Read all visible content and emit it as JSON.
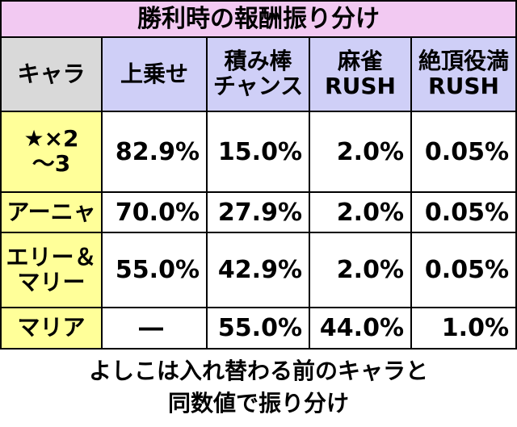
{
  "header": {
    "title": "勝利時の報酬振り分け"
  },
  "table": {
    "columns": [
      [
        "キャラ"
      ],
      [
        "上乗せ"
      ],
      [
        "積み棒",
        "チャンス"
      ],
      [
        "麻雀",
        "RUSH"
      ],
      [
        "絶頂役満",
        "RUSH"
      ]
    ],
    "rows": [
      {
        "label": [
          "★×2",
          "〜3"
        ],
        "cells": [
          "82.9%",
          "15.0%",
          "2.0%",
          "0.05%"
        ]
      },
      {
        "label": [
          "アーニャ"
        ],
        "cells": [
          "70.0%",
          "27.9%",
          "2.0%",
          "0.05%"
        ]
      },
      {
        "label": [
          "エリー＆",
          "マリー"
        ],
        "cells": [
          "55.0%",
          "42.9%",
          "2.0%",
          "0.05%"
        ]
      },
      {
        "label": [
          "マリア"
        ],
        "cells": [
          "―",
          "55.0%",
          "44.0%",
          "1.0%"
        ]
      }
    ]
  },
  "footer": {
    "lines": [
      "よしこは入れ替わる前のキャラと",
      "同数値で振り分け"
    ]
  }
}
